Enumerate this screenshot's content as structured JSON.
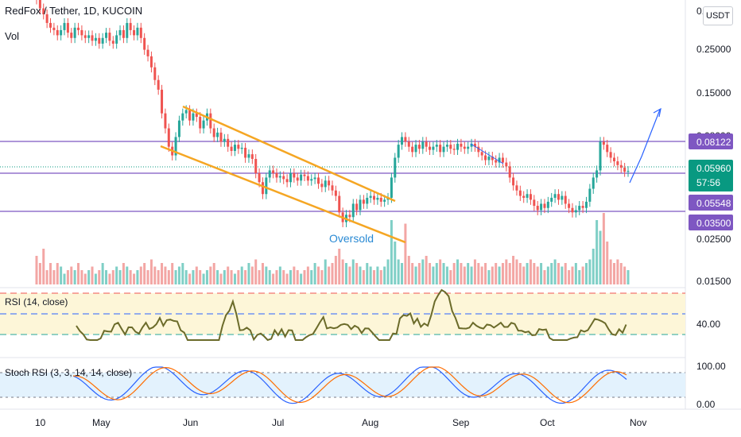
{
  "header": {
    "title": "RedFox / Tether, 1D, KUCOIN",
    "vol_label": "Vol",
    "currency_button": "USDT"
  },
  "annotation": {
    "oversold": "Oversold"
  },
  "colors": {
    "up": "#26a69a",
    "down": "#ef5350",
    "channel": "#f5a623",
    "level_line": "#7e57c2",
    "price_tag": "#089981",
    "arrow": "#2962ff",
    "rsi_line": "#6b6b2a",
    "stoch_k": "#2962ff",
    "stoch_d": "#ff6d00",
    "rsi_band": "#fdf6d8",
    "stoch_band": "#e3f2fd"
  },
  "chart_data": {
    "type": "candlestick",
    "price_axis": {
      "scale": "log",
      "ticks": [
        "0.40000",
        "0.25000",
        "0.15000",
        "0.08000",
        "0.02500",
        "0.01500"
      ]
    },
    "time_axis": {
      "ticks": [
        "10",
        "May",
        "Jun",
        "Jul",
        "Aug",
        "Sep",
        "Oct",
        "Nov"
      ]
    },
    "price_tags": [
      {
        "value": "0.08122",
        "color": "#7e57c2"
      },
      {
        "value": "0.05960",
        "color": "#089981"
      },
      {
        "value": "57:56",
        "color": "#089981"
      },
      {
        "value": "0.05548",
        "color": "#7e57c2"
      },
      {
        "value": "0.03500",
        "color": "#7e57c2"
      }
    ],
    "horizontal_levels": [
      0.08122,
      0.05548,
      0.035
    ],
    "descending_channel": {
      "upper": [
        [
          0.14,
          "2021-05-27"
        ],
        [
          0.058,
          "2021-08-03"
        ]
      ],
      "lower": [
        [
          0.074,
          "2021-05-22"
        ],
        [
          0.025,
          "2021-08-12"
        ]
      ]
    },
    "candles_close": [
      0.48,
      0.43,
      0.4,
      0.36,
      0.34,
      0.33,
      0.31,
      0.33,
      0.36,
      0.32,
      0.3,
      0.34,
      0.33,
      0.31,
      0.3,
      0.31,
      0.29,
      0.3,
      0.28,
      0.3,
      0.32,
      0.29,
      0.28,
      0.31,
      0.33,
      0.3,
      0.36,
      0.33,
      0.31,
      0.34,
      0.3,
      0.26,
      0.24,
      0.21,
      0.18,
      0.16,
      0.12,
      0.1,
      0.08,
      0.072,
      0.09,
      0.11,
      0.12,
      0.125,
      0.11,
      0.12,
      0.115,
      0.1,
      0.11,
      0.12,
      0.1,
      0.09,
      0.095,
      0.085,
      0.088,
      0.08,
      0.076,
      0.082,
      0.078,
      0.079,
      0.07,
      0.073,
      0.069,
      0.058,
      0.052,
      0.045,
      0.055,
      0.06,
      0.058,
      0.055,
      0.056,
      0.054,
      0.052,
      0.058,
      0.055,
      0.053,
      0.057,
      0.056,
      0.053,
      0.054,
      0.055,
      0.051,
      0.049,
      0.053,
      0.05,
      0.047,
      0.044,
      0.036,
      0.032,
      0.035,
      0.034,
      0.04,
      0.037,
      0.042,
      0.04,
      0.043,
      0.044,
      0.042,
      0.043,
      0.041,
      0.042,
      0.043,
      0.055,
      0.07,
      0.082,
      0.09,
      0.085,
      0.08,
      0.075,
      0.082,
      0.078,
      0.085,
      0.08,
      0.077,
      0.08,
      0.082,
      0.075,
      0.08,
      0.082,
      0.078,
      0.077,
      0.083,
      0.08,
      0.078,
      0.08,
      0.083,
      0.08,
      0.075,
      0.072,
      0.068,
      0.071,
      0.068,
      0.066,
      0.07,
      0.066,
      0.063,
      0.055,
      0.05,
      0.047,
      0.044,
      0.043,
      0.045,
      0.042,
      0.039,
      0.037,
      0.04,
      0.038,
      0.041,
      0.043,
      0.045,
      0.042,
      0.044,
      0.04,
      0.038,
      0.036,
      0.037,
      0.039,
      0.038,
      0.041,
      0.048,
      0.055,
      0.06,
      0.085,
      0.082,
      0.075,
      0.07,
      0.067,
      0.064,
      0.062,
      0.059,
      0.0596
    ],
    "volume": [
      0.4,
      0.3,
      0.5,
      0.2,
      0.3,
      0.2,
      0.3,
      0.25,
      0.15,
      0.2,
      0.25,
      0.2,
      0.3,
      0.2,
      0.15,
      0.2,
      0.25,
      0.15,
      0.2,
      0.3,
      0.2,
      0.15,
      0.2,
      0.25,
      0.2,
      0.3,
      0.25,
      0.2,
      0.15,
      0.2,
      0.25,
      0.3,
      0.2,
      0.35,
      0.25,
      0.2,
      0.3,
      0.25,
      0.2,
      0.3,
      0.2,
      0.25,
      0.3,
      0.2,
      0.15,
      0.2,
      0.25,
      0.2,
      0.15,
      0.2,
      0.25,
      0.3,
      0.2,
      0.15,
      0.2,
      0.25,
      0.2,
      0.15,
      0.2,
      0.25,
      0.2,
      0.3,
      0.25,
      0.35,
      0.2,
      0.3,
      0.25,
      0.2,
      0.15,
      0.2,
      0.25,
      0.2,
      0.15,
      0.2,
      0.25,
      0.2,
      0.15,
      0.2,
      0.25,
      0.2,
      0.3,
      0.25,
      0.2,
      0.35,
      0.25,
      0.3,
      0.4,
      0.5,
      0.35,
      0.3,
      0.25,
      0.35,
      0.3,
      0.25,
      0.2,
      0.3,
      0.25,
      0.2,
      0.25,
      0.2,
      0.25,
      0.35,
      0.9,
      0.6,
      0.35,
      0.3,
      0.85,
      0.4,
      0.3,
      0.25,
      0.3,
      0.35,
      0.4,
      0.3,
      0.25,
      0.3,
      0.35,
      0.3,
      0.25,
      0.2,
      0.3,
      0.35,
      0.3,
      0.25,
      0.3,
      0.25,
      0.35,
      0.3,
      0.25,
      0.3,
      0.2,
      0.25,
      0.3,
      0.25,
      0.3,
      0.35,
      0.3,
      0.4,
      0.35,
      0.3,
      0.25,
      0.3,
      0.35,
      0.3,
      0.25,
      0.3,
      0.2,
      0.25,
      0.3,
      0.35,
      0.3,
      0.25,
      0.3,
      0.2,
      0.25,
      0.3,
      0.2,
      0.25,
      0.3,
      0.35,
      0.5,
      0.9,
      0.75,
      1.0,
      0.6,
      0.35,
      0.3,
      0.35,
      0.3,
      0.25,
      0.2
    ],
    "rsi": {
      "title": "RSI (14, close)",
      "tick": "40.00",
      "bands": [
        70,
        50,
        30
      ]
    },
    "stoch_rsi": {
      "title": "Stoch RSI (3, 3, 14, 14, close)",
      "ticks": [
        "100.00",
        "0.00"
      ]
    },
    "projection_arrow": {
      "from_date": "2021-10-30",
      "direction": "up"
    }
  }
}
